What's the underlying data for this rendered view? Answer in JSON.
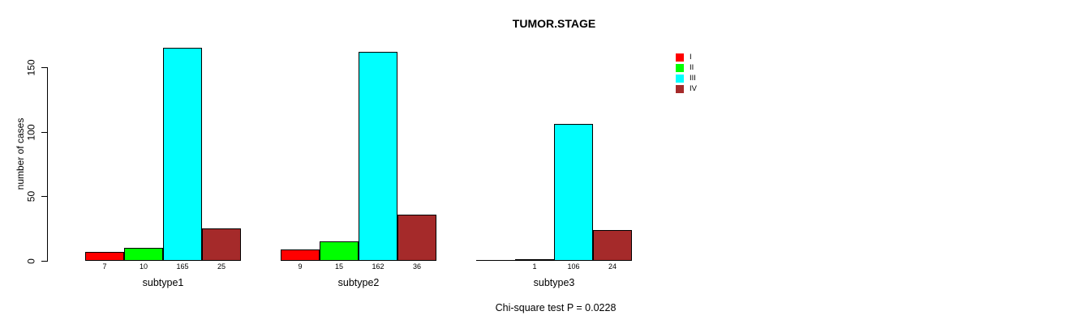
{
  "title": "TUMOR.STAGE",
  "ylabel": "number of cases",
  "footer": "Chi-square test P = 0.0228",
  "chart_data": {
    "type": "bar",
    "title": "TUMOR.STAGE",
    "xlabel": "",
    "ylabel": "number of cases",
    "categories": [
      "subtype1",
      "subtype2",
      "subtype3"
    ],
    "series": [
      {
        "name": "I",
        "color": "#FF0000",
        "values": [
          7,
          9,
          0
        ]
      },
      {
        "name": "II",
        "color": "#00FF00",
        "values": [
          10,
          15,
          1
        ]
      },
      {
        "name": "III",
        "color": "#00FFFF",
        "values": [
          165,
          162,
          106
        ]
      },
      {
        "name": "IV",
        "color": "#A52A2A",
        "values": [
          25,
          36,
          24
        ]
      }
    ],
    "value_labels": [
      [
        "7",
        "10",
        "165",
        "25"
      ],
      [
        "9",
        "15",
        "162",
        "36"
      ],
      [
        "",
        "1",
        "106",
        "24"
      ]
    ],
    "yticks": [
      0,
      50,
      100,
      150
    ],
    "ylim": [
      0,
      170
    ],
    "grid": false,
    "legend_position": "right",
    "annotation": "Chi-square test P = 0.0228"
  }
}
